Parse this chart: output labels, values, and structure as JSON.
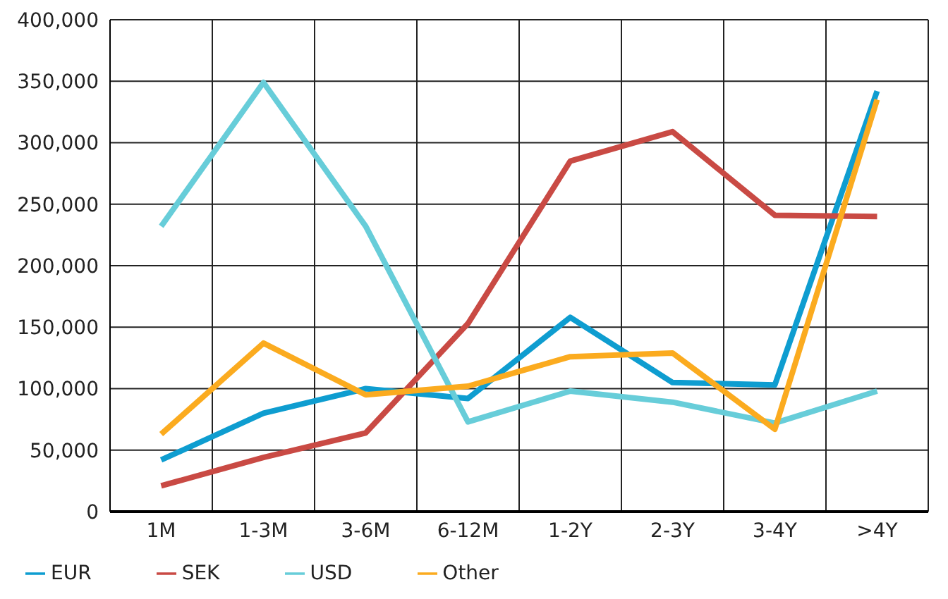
{
  "chart_data": {
    "type": "line",
    "categories": [
      "1M",
      "1-3M",
      "3-6M",
      "6-12M",
      "1-2Y",
      "2-3Y",
      "3-4Y",
      ">4Y"
    ],
    "series": [
      {
        "name": "EUR",
        "color": "#0e9dd0",
        "values": [
          42000,
          80000,
          100000,
          92000,
          158000,
          105000,
          103000,
          342000
        ]
      },
      {
        "name": "SEK",
        "color": "#c94a44",
        "values": [
          21000,
          44000,
          64000,
          153000,
          285000,
          309000,
          241000,
          240000
        ]
      },
      {
        "name": "USD",
        "color": "#67cdd9",
        "values": [
          232000,
          349000,
          232000,
          73000,
          98000,
          89000,
          72000,
          98000
        ]
      },
      {
        "name": "Other",
        "color": "#fbab1f",
        "values": [
          63000,
          137000,
          95000,
          102000,
          126000,
          129000,
          67000,
          335000
        ]
      }
    ],
    "ylim": [
      0,
      400000
    ],
    "yticks": [
      0,
      {
        "value": 50000,
        "label": "50,000"
      },
      {
        "value": 100000,
        "label": "100,000"
      },
      {
        "value": 150000,
        "label": "150,000"
      },
      {
        "value": 200000,
        "label": "200,000"
      },
      {
        "value": 250000,
        "label": "250,000"
      },
      {
        "value": 300000,
        "label": "300,000"
      },
      {
        "value": 350000,
        "label": "350,000"
      },
      {
        "value": 400000,
        "label": "400,000"
      }
    ],
    "grid": true,
    "legend": "bottom",
    "marker": "none",
    "line_style": "solid"
  }
}
